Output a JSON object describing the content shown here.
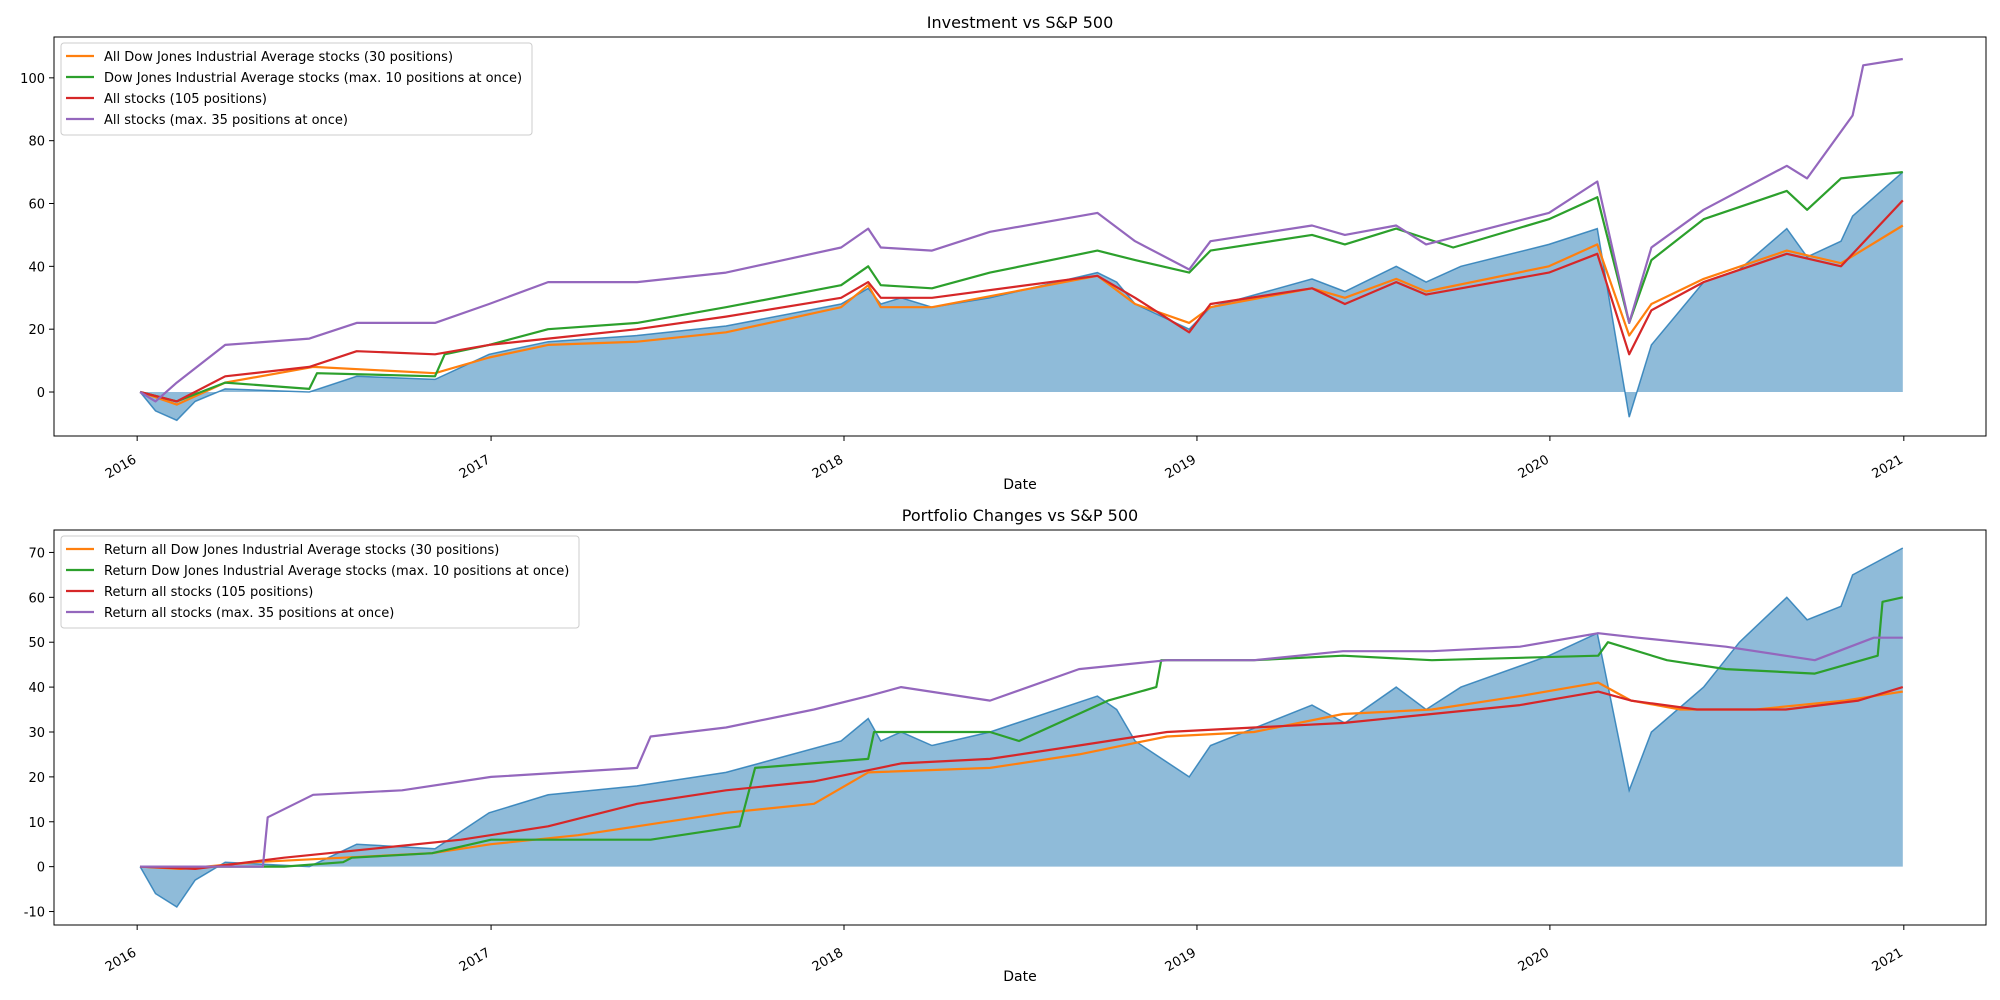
{
  "chart_data": [
    {
      "type": "line",
      "title": "Investment vs S&P 500",
      "xlabel": "Date",
      "ylabel": "",
      "xlim": [
        "2015-10-07",
        "2021-03-27"
      ],
      "ylim": [
        -14,
        113
      ],
      "x_ticks": [
        "2016",
        "2017",
        "2018",
        "2019",
        "2020",
        "2021"
      ],
      "y_ticks": [
        0,
        20,
        40,
        60,
        80,
        100
      ],
      "grid": false,
      "legend_position": "top-left",
      "area": {
        "name": "",
        "color": "#1f77b4",
        "x": [
          "2016-01-04",
          "2016-01-20",
          "2016-02-11",
          "2016-03-01",
          "2016-04-01",
          "2016-06-27",
          "2016-08-15",
          "2016-11-04",
          "2016-12-30",
          "2017-03-01",
          "2017-06-01",
          "2017-09-01",
          "2017-12-29",
          "2018-01-26",
          "2018-02-08",
          "2018-03-01",
          "2018-04-02",
          "2018-06-01",
          "2018-09-20",
          "2018-10-10",
          "2018-10-29",
          "2018-12-24",
          "2019-01-15",
          "2019-04-30",
          "2019-06-03",
          "2019-07-26",
          "2019-08-26",
          "2019-10-01",
          "2019-12-31",
          "2020-02-19",
          "2020-03-23",
          "2020-04-15",
          "2020-06-08",
          "2020-07-15",
          "2020-09-02",
          "2020-09-23",
          "2020-10-28",
          "2020-11-09",
          "2020-12-31"
        ],
        "y": [
          0,
          -6,
          -9,
          -3,
          1,
          0,
          5,
          4,
          12,
          16,
          18,
          21,
          28,
          33,
          28,
          30,
          27,
          30,
          38,
          35,
          28,
          20,
          27,
          36,
          32,
          40,
          35,
          40,
          47,
          52,
          -8,
          15,
          35,
          39,
          52,
          43,
          48,
          56,
          70
        ]
      },
      "series": [
        {
          "name": "All Dow Jones Industrial Average stocks (30 positions)",
          "color": "#ff7f0e",
          "x": [
            "2016-01-04",
            "2016-02-11",
            "2016-04-01",
            "2016-07-01",
            "2016-11-04",
            "2016-12-30",
            "2017-03-01",
            "2017-06-01",
            "2017-09-01",
            "2017-12-29",
            "2018-01-26",
            "2018-02-08",
            "2018-04-02",
            "2018-09-20",
            "2018-10-29",
            "2018-12-24",
            "2019-01-15",
            "2019-04-30",
            "2019-06-03",
            "2019-07-26",
            "2019-08-26",
            "2019-12-31",
            "2020-02-19",
            "2020-03-23",
            "2020-04-15",
            "2020-06-08",
            "2020-09-02",
            "2020-10-28",
            "2020-12-31"
          ],
          "y": [
            0,
            -4,
            3,
            8,
            6,
            11,
            15,
            16,
            19,
            27,
            34,
            27,
            27,
            37,
            28,
            22,
            27,
            33,
            30,
            36,
            32,
            40,
            47,
            18,
            28,
            36,
            45,
            41,
            53
          ]
        },
        {
          "name": "Dow Jones Industrial Average stocks (max. 10 positions at once)",
          "color": "#2ca02c",
          "x": [
            "2016-01-04",
            "2016-02-11",
            "2016-04-01",
            "2016-06-27",
            "2016-07-05",
            "2016-11-04",
            "2016-11-14",
            "2016-12-30",
            "2017-03-01",
            "2017-06-01",
            "2017-09-01",
            "2017-12-29",
            "2018-01-26",
            "2018-02-08",
            "2018-04-02",
            "2018-06-01",
            "2018-09-20",
            "2018-10-29",
            "2018-12-24",
            "2019-01-15",
            "2019-04-30",
            "2019-06-03",
            "2019-07-26",
            "2019-09-23",
            "2019-12-31",
            "2020-02-19",
            "2020-03-23",
            "2020-04-15",
            "2020-06-08",
            "2020-09-02",
            "2020-09-23",
            "2020-10-28",
            "2020-12-31"
          ],
          "y": [
            0,
            -3,
            3,
            1,
            6,
            5,
            12,
            15,
            20,
            22,
            27,
            34,
            40,
            34,
            33,
            38,
            45,
            42,
            38,
            45,
            50,
            47,
            52,
            46,
            55,
            62,
            22,
            42,
            55,
            64,
            58,
            68,
            70
          ]
        },
        {
          "name": "All stocks (105 positions)",
          "color": "#d62728",
          "x": [
            "2016-01-04",
            "2016-02-11",
            "2016-04-01",
            "2016-06-27",
            "2016-08-15",
            "2016-11-04",
            "2016-12-30",
            "2017-03-01",
            "2017-06-01",
            "2017-09-01",
            "2017-12-29",
            "2018-01-26",
            "2018-02-08",
            "2018-04-02",
            "2018-09-20",
            "2018-10-29",
            "2018-12-24",
            "2019-01-15",
            "2019-04-30",
            "2019-06-03",
            "2019-07-26",
            "2019-08-26",
            "2019-12-31",
            "2020-02-19",
            "2020-03-23",
            "2020-04-15",
            "2020-06-08",
            "2020-09-02",
            "2020-10-28",
            "2020-12-31"
          ],
          "y": [
            0,
            -3,
            5,
            8,
            13,
            12,
            15,
            17,
            20,
            24,
            30,
            35,
            30,
            30,
            37,
            30,
            19,
            28,
            33,
            28,
            35,
            31,
            38,
            44,
            12,
            26,
            35,
            44,
            40,
            61
          ]
        },
        {
          "name": "All stocks (max. 35 positions at once)",
          "color": "#9467bd",
          "x": [
            "2016-01-04",
            "2016-01-20",
            "2016-02-11",
            "2016-04-01",
            "2016-06-27",
            "2016-08-15",
            "2016-11-04",
            "2016-12-30",
            "2017-03-01",
            "2017-06-01",
            "2017-09-01",
            "2017-12-29",
            "2018-01-26",
            "2018-02-08",
            "2018-04-02",
            "2018-06-01",
            "2018-09-20",
            "2018-10-29",
            "2018-12-24",
            "2019-01-15",
            "2019-04-30",
            "2019-06-03",
            "2019-07-26",
            "2019-08-26",
            "2019-12-31",
            "2020-02-19",
            "2020-03-23",
            "2020-04-15",
            "2020-06-08",
            "2020-09-02",
            "2020-09-23",
            "2020-11-09",
            "2020-11-20",
            "2020-12-31"
          ],
          "y": [
            0,
            -3,
            3,
            15,
            17,
            22,
            22,
            28,
            35,
            35,
            38,
            46,
            52,
            46,
            45,
            51,
            57,
            48,
            39,
            48,
            53,
            50,
            53,
            47,
            57,
            67,
            22,
            46,
            58,
            72,
            68,
            88,
            104,
            106
          ]
        }
      ]
    },
    {
      "type": "line",
      "title": "Portfolio Changes vs S&P 500",
      "xlabel": "Date",
      "ylabel": "",
      "xlim": [
        "2015-10-07",
        "2021-03-27"
      ],
      "ylim": [
        -13,
        75
      ],
      "x_ticks": [
        "2016",
        "2017",
        "2018",
        "2019",
        "2020",
        "2021"
      ],
      "y_ticks": [
        -10,
        0,
        10,
        20,
        30,
        40,
        50,
        60,
        70
      ],
      "grid": false,
      "legend_position": "top-left",
      "area": {
        "name": "",
        "color": "#1f77b4",
        "x": [
          "2016-01-04",
          "2016-01-20",
          "2016-02-11",
          "2016-03-01",
          "2016-04-01",
          "2016-06-27",
          "2016-08-15",
          "2016-11-04",
          "2016-12-30",
          "2017-03-01",
          "2017-06-01",
          "2017-09-01",
          "2017-12-29",
          "2018-01-26",
          "2018-02-08",
          "2018-03-01",
          "2018-04-02",
          "2018-06-01",
          "2018-09-20",
          "2018-10-10",
          "2018-10-29",
          "2018-12-24",
          "2019-01-15",
          "2019-04-30",
          "2019-06-03",
          "2019-07-26",
          "2019-08-26",
          "2019-10-01",
          "2019-12-31",
          "2020-02-19",
          "2020-03-23",
          "2020-04-15",
          "2020-06-08",
          "2020-07-15",
          "2020-09-02",
          "2020-09-23",
          "2020-10-28",
          "2020-11-09",
          "2020-12-31"
        ],
        "y": [
          0,
          -6,
          -9,
          -3,
          1,
          0,
          5,
          4,
          12,
          16,
          18,
          21,
          28,
          33,
          28,
          30,
          27,
          30,
          38,
          35,
          28,
          20,
          27,
          36,
          32,
          40,
          35,
          40,
          47,
          52,
          17,
          30,
          40,
          50,
          60,
          55,
          58,
          65,
          71
        ]
      },
      "series": [
        {
          "name": "Return all Dow Jones Industrial Average stocks (30 positions)",
          "color": "#ff7f0e",
          "x": [
            "2016-01-04",
            "2016-02-15",
            "2016-05-01",
            "2016-08-01",
            "2016-11-01",
            "2017-01-01",
            "2017-04-01",
            "2017-06-01",
            "2017-09-01",
            "2017-12-01",
            "2018-01-26",
            "2018-06-01",
            "2018-09-01",
            "2018-12-01",
            "2019-03-01",
            "2019-06-01",
            "2019-09-01",
            "2019-12-01",
            "2020-02-20",
            "2020-03-25",
            "2020-05-15",
            "2020-08-01",
            "2020-11-01",
            "2020-12-31"
          ],
          "y": [
            0,
            -0.5,
            1,
            2,
            3,
            5,
            7,
            9,
            12,
            14,
            21,
            22,
            25,
            29,
            30,
            34,
            35,
            38,
            41,
            37,
            35,
            35,
            37,
            39
          ]
        },
        {
          "name": "Return Dow Jones Industrial Average stocks (max. 10 positions at once)",
          "color": "#2ca02c",
          "x": [
            "2016-01-04",
            "2016-06-01",
            "2016-08-01",
            "2016-08-10",
            "2016-11-01",
            "2017-01-01",
            "2017-06-15",
            "2017-09-15",
            "2017-10-01",
            "2018-01-26",
            "2018-02-01",
            "2018-06-01",
            "2018-07-01",
            "2018-10-01",
            "2018-11-20",
            "2018-11-25",
            "2019-03-01",
            "2019-06-01",
            "2019-09-01",
            "2020-02-20",
            "2020-03-01",
            "2020-05-01",
            "2020-07-01",
            "2020-10-01",
            "2020-12-05",
            "2020-12-10",
            "2020-12-31"
          ],
          "y": [
            0,
            0,
            1,
            2,
            3,
            6,
            6,
            9,
            22,
            24,
            30,
            30,
            28,
            37,
            40,
            46,
            46,
            47,
            46,
            47,
            50,
            46,
            44,
            43,
            47,
            59,
            60
          ]
        },
        {
          "name": "Return all stocks (105 positions)",
          "color": "#d62728",
          "x": [
            "2016-01-04",
            "2016-03-01",
            "2016-06-01",
            "2016-09-01",
            "2016-12-01",
            "2017-03-01",
            "2017-06-01",
            "2017-09-01",
            "2017-12-01",
            "2018-03-01",
            "2018-06-01",
            "2018-09-01",
            "2018-12-01",
            "2019-03-01",
            "2019-06-01",
            "2019-09-01",
            "2019-12-01",
            "2020-02-20",
            "2020-03-25",
            "2020-06-01",
            "2020-09-01",
            "2020-11-15",
            "2020-12-31"
          ],
          "y": [
            0,
            -0.5,
            2,
            4,
            6,
            9,
            14,
            17,
            19,
            23,
            24,
            27,
            30,
            31,
            32,
            34,
            36,
            39,
            37,
            35,
            35,
            37,
            40
          ]
        },
        {
          "name": "Return all stocks (max. 35 positions at once)",
          "color": "#9467bd",
          "x": [
            "2016-01-04",
            "2016-05-10",
            "2016-05-15",
            "2016-07-01",
            "2016-10-01",
            "2017-01-01",
            "2017-06-01",
            "2017-06-15",
            "2017-09-01",
            "2017-12-01",
            "2018-01-26",
            "2018-03-01",
            "2018-06-01",
            "2018-09-01",
            "2018-12-01",
            "2019-03-01",
            "2019-06-01",
            "2019-09-01",
            "2019-12-01",
            "2020-02-20",
            "2020-04-01",
            "2020-07-01",
            "2020-10-01",
            "2020-12-01",
            "2020-12-31"
          ],
          "y": [
            0,
            0,
            11,
            16,
            17,
            20,
            22,
            29,
            31,
            35,
            38,
            40,
            37,
            44,
            46,
            46,
            48,
            48,
            49,
            52,
            51,
            49,
            46,
            51,
            51
          ]
        }
      ]
    }
  ]
}
